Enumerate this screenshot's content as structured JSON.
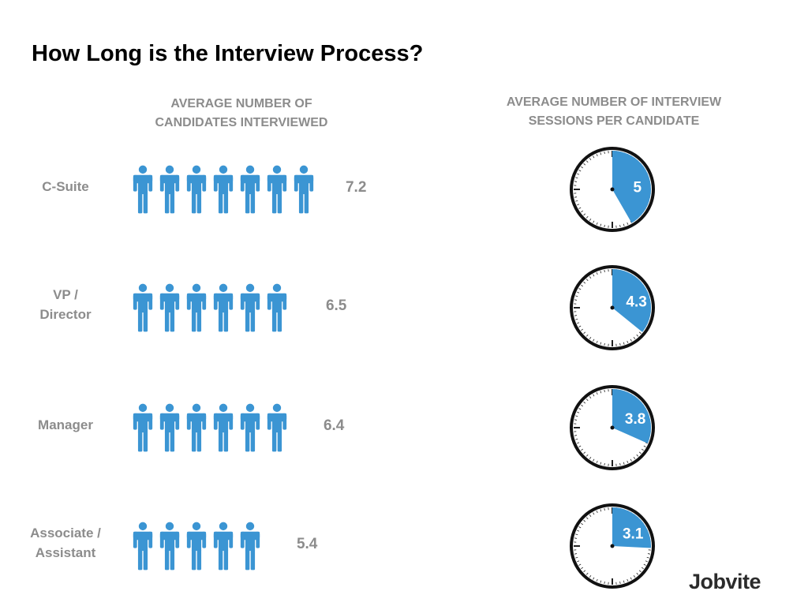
{
  "title": "How Long is the Interview Process?",
  "left_header": [
    "AVERAGE NUMBER OF",
    "CANDIDATES INTERVIEWED"
  ],
  "right_header": [
    "AVERAGE NUMBER OF INTERVIEW",
    "SESSIONS PER CANDIDATE"
  ],
  "logo_text": "Jobvite",
  "colors": {
    "accent": "#3b95d3",
    "text_gray": "#8c8c8c",
    "title": "#000000"
  },
  "rows": [
    {
      "label_lines": [
        "C-Suite"
      ],
      "candidates": "7.2",
      "sessions": "5"
    },
    {
      "label_lines": [
        "VP /",
        "Director"
      ],
      "candidates": "6.5",
      "sessions": "4.3"
    },
    {
      "label_lines": [
        "Manager"
      ],
      "candidates": "6.4",
      "sessions": "3.8"
    },
    {
      "label_lines": [
        "Associate /",
        "Assistant"
      ],
      "candidates": "5.4",
      "sessions": "3.1"
    }
  ],
  "chart_data": [
    {
      "type": "bar",
      "representation": "pictogram",
      "icon": "person-icon",
      "categories": [
        "C-Suite",
        "VP / Director",
        "Manager",
        "Associate / Assistant"
      ],
      "values": [
        7.2,
        6.5,
        6.4,
        5.4
      ],
      "title": "AVERAGE NUMBER OF CANDIDATES INTERVIEWED"
    },
    {
      "type": "pie",
      "representation": "clock",
      "icon": "clock-icon",
      "categories": [
        "C-Suite",
        "VP / Director",
        "Manager",
        "Associate / Assistant"
      ],
      "values": [
        5,
        4.3,
        3.8,
        3.1
      ],
      "title": "AVERAGE NUMBER OF INTERVIEW SESSIONS PER CANDIDATE"
    }
  ]
}
